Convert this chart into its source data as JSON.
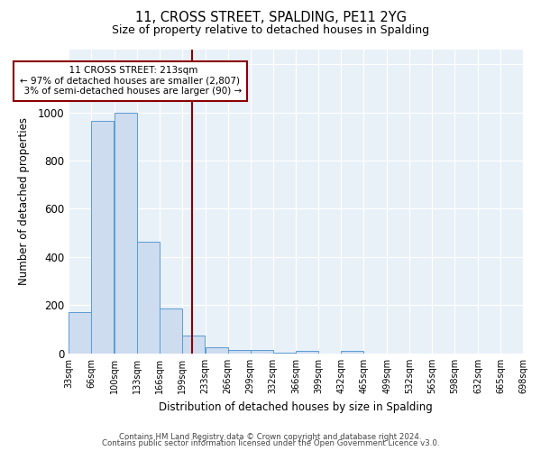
{
  "title": "11, CROSS STREET, SPALDING, PE11 2YG",
  "subtitle": "Size of property relative to detached houses in Spalding",
  "xlabel": "Distribution of detached houses by size in Spalding",
  "ylabel": "Number of detached properties",
  "bar_color": "#cddcee",
  "bar_edge_color": "#5b9bd5",
  "vline_color": "#8b0000",
  "vline_x": 213,
  "annotation_title": "11 CROSS STREET: 213sqm",
  "annotation_line1": "← 97% of detached houses are smaller (2,807)",
  "annotation_line2": "3% of semi-detached houses are larger (90) →",
  "annotation_box_edge": "#8b0000",
  "bins": [
    33,
    66,
    100,
    133,
    166,
    199,
    233,
    266,
    299,
    332,
    366,
    399,
    432,
    465,
    499,
    532,
    565,
    598,
    632,
    665,
    698
  ],
  "values": [
    170,
    965,
    1000,
    465,
    185,
    75,
    25,
    15,
    15,
    5,
    10,
    0,
    10,
    0,
    0,
    0,
    0,
    0,
    0,
    0
  ],
  "ylim": [
    0,
    1260
  ],
  "yticks": [
    0,
    200,
    400,
    600,
    800,
    1000,
    1200
  ],
  "footer1": "Contains HM Land Registry data © Crown copyright and database right 2024.",
  "footer2": "Contains public sector information licensed under the Open Government Licence v3.0.",
  "fig_bg_color": "#ffffff",
  "plot_bg_color": "#e8f0f8"
}
